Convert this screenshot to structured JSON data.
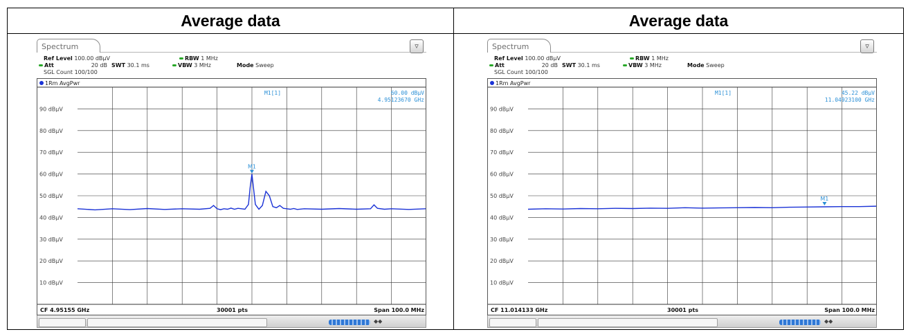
{
  "columns": [
    {
      "title": "Average data",
      "spectrum": {
        "tab_label": "Spectrum",
        "ref_level_label": "Ref Level",
        "ref_level_value": "100.00 dBµV",
        "att_label": "Att",
        "att_value": "20 dB",
        "swt_label": "SWT",
        "swt_value": "30.1 ms",
        "rbw_label": "RBW",
        "rbw_value": "1 MHz",
        "vbw_label": "VBW",
        "vbw_value": "3 MHz",
        "mode_label": "Mode",
        "mode_value": "Sweep",
        "count_text": "SGL Count 100/100",
        "trace_label": "1Rm AvgPwr",
        "marker_name": "M1[1]",
        "marker_level": "60.00 dBµV",
        "marker_freq": "4.95123670 GHz",
        "cf_text": "CF 4.95155 GHz",
        "pts_text": "30001 pts",
        "span_text": "Span 100.0 MHz"
      }
    },
    {
      "title": "Average data",
      "spectrum": {
        "tab_label": "Spectrum",
        "ref_level_label": "Ref Level",
        "ref_level_value": "100.00 dBµV",
        "att_label": "Att",
        "att_value": "20 dB",
        "swt_label": "SWT",
        "swt_value": "30.1 ms",
        "rbw_label": "RBW",
        "rbw_value": "1 MHz",
        "vbw_label": "VBW",
        "vbw_value": "3 MHz",
        "mode_label": "Mode",
        "mode_value": "Sweep",
        "count_text": "SGL Count 100/100",
        "trace_label": "1Rm AvgPwr",
        "marker_name": "M1[1]",
        "marker_level": "45.22 dBµV",
        "marker_freq": "11.04923100 GHz",
        "cf_text": "CF 11.014133 GHz",
        "pts_text": "30001 pts",
        "span_text": "Span 100.0 MHz"
      }
    }
  ],
  "chart_data": [
    {
      "type": "line",
      "series_color": "#1a32d6",
      "grid_color": "#333333",
      "text_color": "#2a8fd6",
      "ylim": [
        0,
        100
      ],
      "xlim": [
        0,
        10
      ],
      "yticks": [
        90,
        80,
        70,
        60,
        50,
        40,
        30,
        20,
        10
      ],
      "ytick_labels": [
        "90 dBµV",
        "80 dBµV",
        "70 dBµV",
        "60 dBµV",
        "50 dBµV",
        "40 dBµV",
        "30 dBµV",
        "20 dBµV",
        "10 dBµV"
      ],
      "x_divisions": 10,
      "series": [
        {
          "x": [
            0,
            0.5,
            1.0,
            1.5,
            2.0,
            2.5,
            3.0,
            3.5,
            3.8,
            3.9,
            4.0,
            4.1,
            4.2,
            4.3,
            4.4,
            4.5,
            4.6,
            4.7,
            4.8,
            4.9,
            4.95,
            5.0,
            5.05,
            5.1,
            5.2,
            5.3,
            5.4,
            5.5,
            5.6,
            5.7,
            5.8,
            5.9,
            6.0,
            6.1,
            6.2,
            6.3,
            6.5,
            7.0,
            7.5,
            8.0,
            8.4,
            8.5,
            8.6,
            8.8,
            9.0,
            9.5,
            10
          ],
          "y": [
            44.0,
            43.5,
            44.0,
            43.6,
            44.1,
            43.7,
            44.0,
            43.8,
            44.2,
            45.5,
            44.0,
            43.6,
            44.0,
            43.8,
            44.3,
            43.8,
            44.2,
            44.0,
            43.8,
            46,
            54,
            60.0,
            53,
            46,
            43.8,
            45.5,
            52,
            50,
            45,
            44.5,
            45.5,
            44.2,
            44.0,
            43.8,
            44.1,
            43.7,
            44.0,
            43.8,
            44.1,
            43.8,
            44.0,
            45.8,
            44.2,
            43.8,
            44.0,
            43.7,
            44.0
          ]
        }
      ],
      "markers": [
        {
          "label": "M1",
          "x": 5.0,
          "y": 60.0
        }
      ]
    },
    {
      "type": "line",
      "series_color": "#1a32d6",
      "grid_color": "#333333",
      "text_color": "#2a8fd6",
      "ylim": [
        0,
        100
      ],
      "xlim": [
        0,
        10
      ],
      "yticks": [
        90,
        80,
        70,
        60,
        50,
        40,
        30,
        20,
        10
      ],
      "ytick_labels": [
        "90 dBµV",
        "80 dBµV",
        "70 dBµV",
        "60 dBµV",
        "50 dBµV",
        "40 dBµV",
        "30 dBµV",
        "20 dBµV",
        "10 dBµV"
      ],
      "x_divisions": 10,
      "series": [
        {
          "x": [
            0,
            0.5,
            1.0,
            1.5,
            2.0,
            2.5,
            3.0,
            3.5,
            4.0,
            4.5,
            5.0,
            5.5,
            6.0,
            6.5,
            7.0,
            7.5,
            8.0,
            8.5,
            9.0,
            9.5,
            10
          ],
          "y": [
            43.8,
            44.0,
            43.9,
            44.1,
            44.0,
            44.2,
            44.1,
            44.3,
            44.2,
            44.5,
            44.3,
            44.4,
            44.5,
            44.6,
            44.5,
            44.7,
            44.8,
            44.9,
            45.0,
            45.0,
            45.2
          ]
        }
      ],
      "markers": [
        {
          "label": "M1",
          "x": 8.5,
          "y": 45.22
        }
      ]
    }
  ]
}
